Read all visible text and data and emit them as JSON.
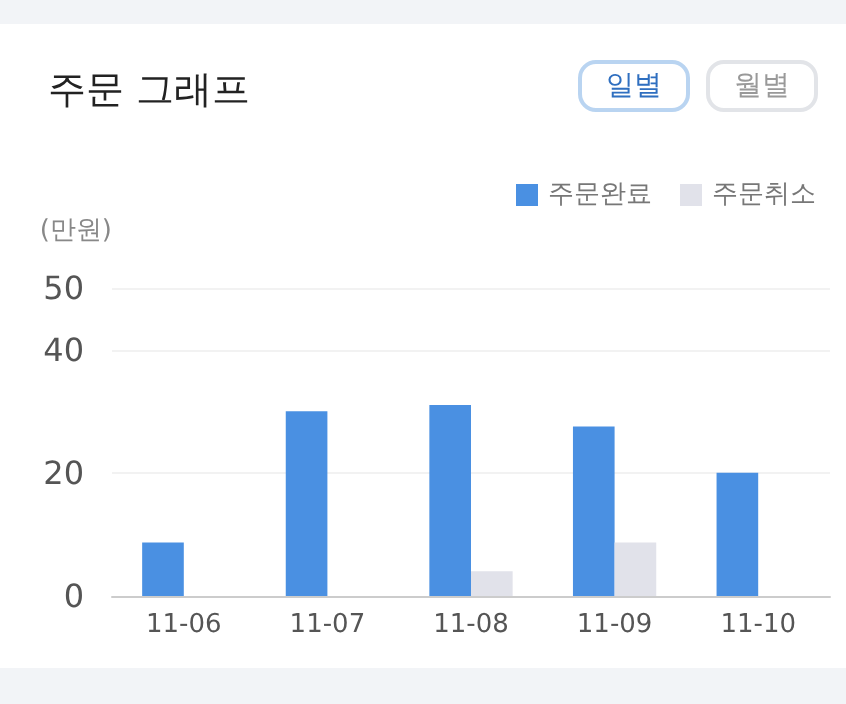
{
  "chart_data": {
    "type": "bar",
    "title": "주문 그래프",
    "ylabel": "(만원)",
    "annotations": [
      "일별",
      "월별"
    ],
    "categories": [
      "11-06",
      "11-07",
      "11-08",
      "11-09",
      "11-10"
    ],
    "series": [
      {
        "name": "주문완료",
        "color": "#4a90e2",
        "values": [
          8.7,
          30,
          31,
          27.5,
          20
        ]
      },
      {
        "name": "주문취소",
        "color": "#e1e2ea",
        "values": [
          0,
          0,
          4,
          8.7,
          0
        ]
      }
    ],
    "ylim": [
      0,
      50
    ],
    "yticks": [
      0,
      20,
      40,
      50
    ],
    "grid": "y",
    "legend": "top right"
  }
}
